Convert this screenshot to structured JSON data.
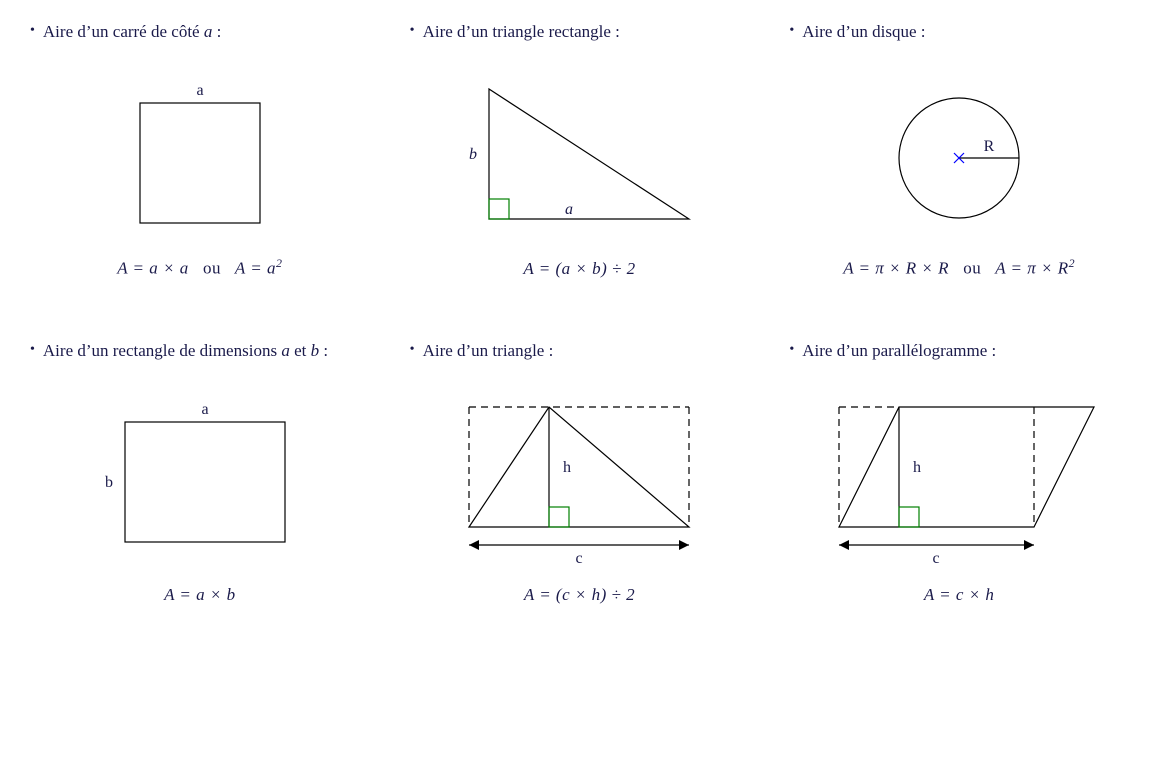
{
  "colors": {
    "stroke": "#000000",
    "accent_green": "#008000",
    "accent_blue": "#0000ff",
    "text": "#1a1a4a",
    "bg": "#ffffff"
  },
  "stroke_width": 1.2,
  "cells": {
    "square": {
      "title": "Aire d’un carré de côté",
      "title_var": "a",
      "title_suffix": " :",
      "label_a": "a",
      "formula_html": "A = a × a &nbsp; <span class=\"rm\">ou</span> &nbsp; A = a<sup>2</sup>"
    },
    "right_triangle": {
      "title": "Aire d’un triangle rectangle :",
      "label_a": "a",
      "label_b": "b",
      "formula_html": "A = (a × b) ÷ 2"
    },
    "disk": {
      "title": "Aire d’un disque :",
      "label_r": "R",
      "formula_html": "A = π × R × R &nbsp; <span class=\"rm\">ou</span> &nbsp; A = π × R<sup>2</sup>"
    },
    "rectangle": {
      "title": "Aire d’un rectangle de dimensions",
      "title_var": "a",
      "title_mid": " et ",
      "title_var2": "b",
      "title_suffix": " :",
      "label_a": "a",
      "label_b": "b",
      "formula_html": "A = a × b"
    },
    "triangle": {
      "title": "Aire d’un triangle :",
      "label_h": "h",
      "label_c": "c",
      "formula_html": "A = (c × h) ÷ 2"
    },
    "parallelogram": {
      "title": "Aire d’un parallélogramme :",
      "label_h": "h",
      "label_c": "c",
      "formula_html": "A = c × h"
    }
  }
}
